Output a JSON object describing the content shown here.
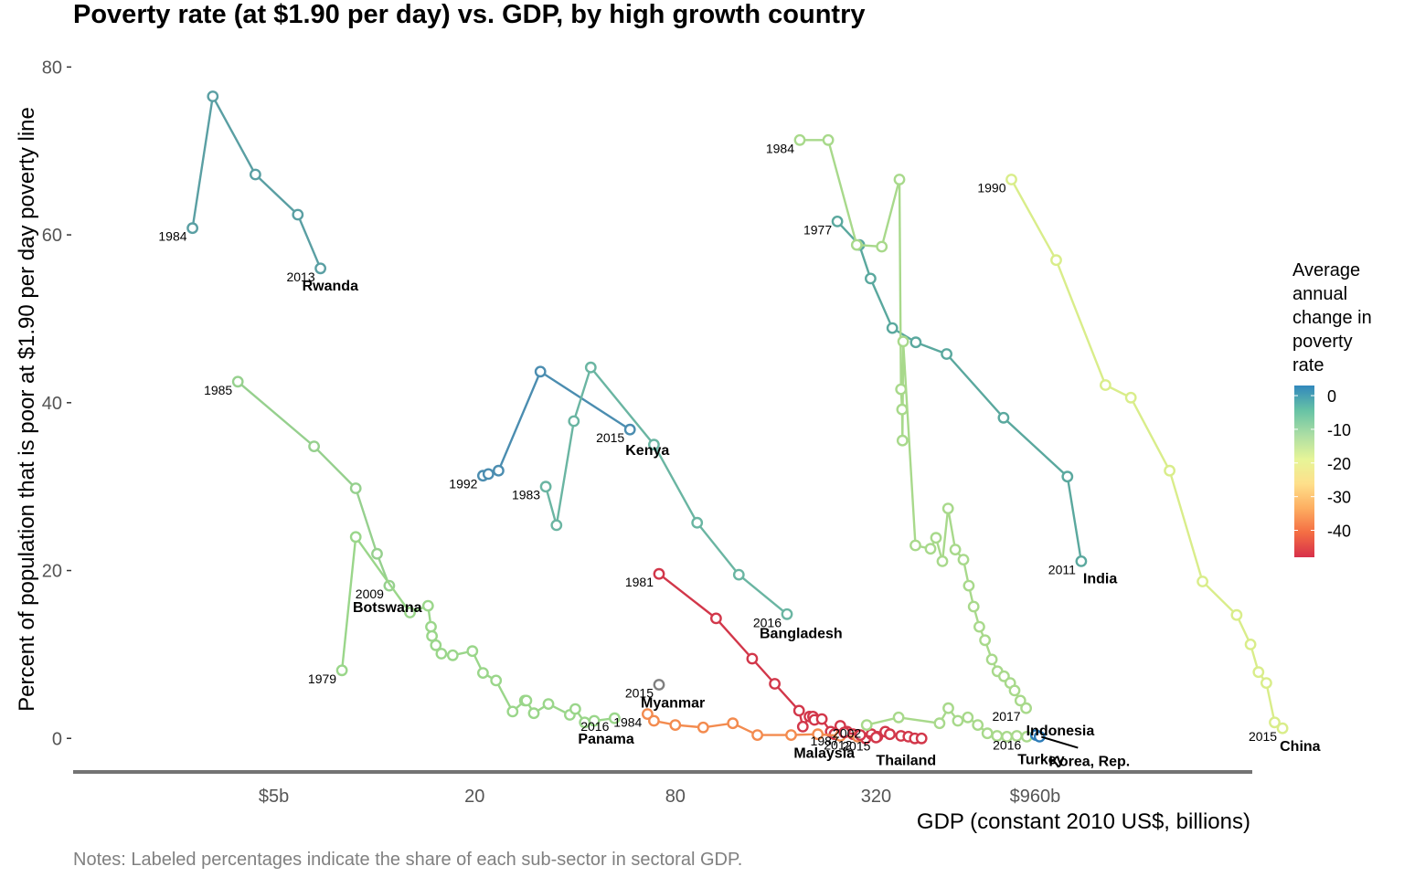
{
  "chart_data": {
    "type": "line",
    "title": "Poverty rate (at $1.90 per day) vs. GDP, by high growth country",
    "xlabel": "GDP (constant 2010 US$, billions)",
    "ylabel": "Percent of population that is poor at $1.90 per day poverty line",
    "notes": "Notes: Labeled percentages indicate the share of each sub-sector in sectoral GDP.",
    "x_scale": "log",
    "xlim": [
      1.25,
      4300
    ],
    "ylim": [
      -4,
      82
    ],
    "x_ticks": [
      {
        "value": 5,
        "label": "$5b"
      },
      {
        "value": 20,
        "label": "20"
      },
      {
        "value": 80,
        "label": "80"
      },
      {
        "value": 320,
        "label": "320"
      },
      {
        "value": 960,
        "label": "$960b"
      }
    ],
    "y_ticks": [
      0,
      20,
      40,
      60,
      80
    ],
    "grid": false,
    "legend": {
      "position": "right",
      "title_lines": [
        "Average",
        "annual",
        "change in",
        "poverty",
        "rate"
      ],
      "ticks": [
        "0",
        "-10",
        "-20",
        "-30",
        "-40"
      ],
      "tick_values": [
        0,
        -10,
        -20,
        -30,
        -40
      ],
      "range": [
        -48,
        3
      ],
      "colors": [
        "#d7304a",
        "#f46d43",
        "#fdae61",
        "#fee08b",
        "#e6f598",
        "#abdda4",
        "#66c2a5",
        "#3288bd"
      ]
    },
    "series": [
      {
        "name": "Rwanda",
        "color": "#5a9fa3",
        "start_year": "1984",
        "end_year": "2013",
        "x": [
          2.85,
          3.28,
          4.4,
          5.9,
          6.9
        ],
        "y": [
          60.8,
          76.5,
          67.2,
          62.4,
          56.0
        ]
      },
      {
        "name": "Botswana",
        "color": "#96d08e",
        "start_year": "1985",
        "end_year": "2009",
        "x": [
          3.9,
          6.6,
          8.8,
          10.2,
          11.1
        ],
        "y": [
          42.5,
          34.8,
          29.8,
          22.0,
          18.2
        ]
      },
      {
        "name": "Panama",
        "color": "#9ad68a",
        "start_year": "1979",
        "end_year": "2016",
        "x": [
          8.0,
          8.8,
          12.8,
          14.5,
          14.8,
          14.9,
          15.3,
          15.9,
          17.2,
          19.7,
          21.2,
          23.2,
          26.0,
          28.3,
          28.6,
          30.1,
          33.3,
          38.6,
          40.1,
          42.8,
          45.7,
          52.6
        ],
        "y": [
          8.1,
          24.0,
          15.0,
          15.8,
          13.3,
          12.2,
          11.1,
          10.1,
          9.9,
          10.4,
          7.8,
          6.9,
          3.2,
          4.5,
          4.5,
          3.0,
          4.1,
          2.8,
          3.5,
          1.9,
          2.1,
          2.4
        ]
      },
      {
        "name": "Kenya",
        "color": "#4b8db0",
        "start_year": "1992",
        "end_year": "2015",
        "x": [
          21.2,
          22.0,
          23.6,
          31.5,
          58.5
        ],
        "y": [
          31.3,
          31.5,
          31.9,
          43.7,
          36.8
        ]
      },
      {
        "name": "Bangladesh",
        "color": "#6ab5a2",
        "start_year": "1983",
        "end_year": "2016",
        "x": [
          32.7,
          35.2,
          39.7,
          44.6,
          69.0,
          93.0,
          124.0,
          173.0
        ],
        "y": [
          30.0,
          25.4,
          37.8,
          44.2,
          35.0,
          25.7,
          19.5,
          14.8
        ]
      },
      {
        "name": "Myanmar",
        "color": "#7f7f7f",
        "start_year": "2015",
        "end_year": "",
        "x": [
          71.5
        ],
        "y": [
          6.4
        ]
      },
      {
        "name": "Bangladesh-1981",
        "color": "#d2374a",
        "start_year": "1981",
        "end_year": "",
        "x": [
          71.5,
          106.0,
          136.0,
          159.0,
          188.0,
          193.0,
          202.0,
          207.0,
          209.0,
          220.0,
          234.0,
          240.0,
          250.0,
          262.0,
          273.0,
          284.0,
          287.0,
          298.0,
          310.0,
          323.0,
          341.0,
          352.0,
          380.0,
          400.0,
          418.0,
          438.0
        ],
        "y": [
          19.6,
          14.3,
          9.5,
          6.5,
          3.3,
          1.4,
          2.6,
          2.6,
          2.2,
          2.3,
          0.8,
          0.5,
          1.5,
          0.8,
          0.5,
          0.4,
          0.3,
          0.0,
          0.5,
          0.2,
          0.8,
          0.5,
          0.3,
          0.2,
          0.0,
          0.0
        ]
      },
      {
        "name": "Malaysia",
        "color": "#f38b4f",
        "start_year": "1984",
        "end_year": "2012",
        "x": [
          66.0,
          69.0,
          80.0,
          97.0,
          119.0,
          141.0,
          178.0,
          214.0,
          250.0,
          282.0
        ],
        "y": [
          2.9,
          2.1,
          1.6,
          1.3,
          1.8,
          0.4,
          0.4,
          0.5,
          0.3,
          0.2
        ]
      },
      {
        "name": "Thailand",
        "color": "#d2374a",
        "start_year": "1987",
        "end_year": "2015",
        "x": [
          257.0,
          287.0,
          320.0
        ],
        "y": [
          0.7,
          0.4,
          0.1
        ]
      },
      {
        "name": "India",
        "color": "#5aa89e",
        "start_year": "1977",
        "end_year": "2011",
        "x": [
          245.0,
          285.0,
          308.0,
          358.0,
          421.0,
          521.0,
          772.0,
          1200.0,
          1320.0
        ],
        "y": [
          61.6,
          58.8,
          54.8,
          48.9,
          47.2,
          45.8,
          38.2,
          31.2,
          21.1
        ]
      },
      {
        "name": "Indonesia",
        "color": "#a8d98b",
        "start_year": "1984",
        "end_year": "2017",
        "x": [
          189.0,
          230.0,
          280.0,
          333.0,
          376.0,
          380.0,
          383.0,
          384.0,
          386.0,
          420.0,
          466.0,
          484.0,
          506.0,
          526.0,
          553.0,
          585.0,
          607.0,
          628.0,
          653.0,
          679.0,
          712.0,
          740.0,
          774.0,
          808.0,
          833.0,
          867.0,
          902.0
        ],
        "y": [
          71.3,
          71.3,
          58.8,
          58.6,
          66.6,
          41.6,
          39.2,
          35.5,
          47.3,
          23.0,
          22.6,
          23.9,
          21.1,
          27.4,
          22.5,
          21.3,
          18.2,
          15.7,
          13.3,
          11.7,
          9.4,
          8.0,
          7.4,
          6.6,
          5.7,
          4.5,
          3.6
        ]
      },
      {
        "name": "Turkey",
        "color": "#a8d98b",
        "start_year": "2002",
        "end_year": "2016",
        "x": [
          300.0,
          374.0,
          496.0,
          527.0,
          563.0,
          603.0,
          646.0,
          690.0,
          738.0,
          790.0,
          846.0,
          906.0
        ],
        "y": [
          1.6,
          2.5,
          1.8,
          3.6,
          2.1,
          2.5,
          1.6,
          0.6,
          0.3,
          0.2,
          0.3,
          0.2
        ]
      },
      {
        "name": "Korea, Rep.",
        "color": "#2b7bb8",
        "start_year": "",
        "end_year": "",
        "x": [
          965.0,
          990.0
        ],
        "y": [
          0.4,
          0.2
        ]
      },
      {
        "name": "China",
        "color": "#d9ed8a",
        "start_year": "1990",
        "end_year": "2015",
        "x": [
          815.0,
          1110.0,
          1560.0,
          1860.0,
          2430.0,
          3050.0,
          3860.0,
          4250.0,
          4490.0,
          4740.0,
          5020.0,
          5300.0
        ],
        "y": [
          66.6,
          57.0,
          42.1,
          40.6,
          31.9,
          18.7,
          14.7,
          11.2,
          7.9,
          6.6,
          1.9,
          1.2
        ]
      }
    ],
    "year_labels": [
      {
        "text": "1984",
        "series": "Rwanda",
        "at": "start"
      },
      {
        "text": "2013",
        "series": "Rwanda",
        "at": "end"
      },
      {
        "text": "1985",
        "series": "Botswana",
        "at": "start"
      },
      {
        "text": "2009",
        "series": "Botswana",
        "at": "end"
      },
      {
        "text": "1979",
        "series": "Panama",
        "at": "start"
      },
      {
        "text": "2016",
        "series": "Panama",
        "at": "end"
      },
      {
        "text": "1992",
        "series": "Kenya",
        "at": "start"
      },
      {
        "text": "2015",
        "series": "Kenya",
        "at": "end"
      },
      {
        "text": "1983",
        "series": "Bangladesh",
        "at": "start"
      },
      {
        "text": "2016",
        "series": "Bangladesh",
        "at": "end"
      },
      {
        "text": "2015",
        "series": "Myanmar",
        "at": "start"
      },
      {
        "text": "1981",
        "series": "Bangladesh-1981",
        "at": "start"
      },
      {
        "text": "1984",
        "series": "Malaysia",
        "at": "start"
      },
      {
        "text": "2012",
        "series": "Malaysia",
        "at": "end"
      },
      {
        "text": "1987",
        "series": "Thailand",
        "at": "start"
      },
      {
        "text": "2015",
        "series": "Thailand",
        "at": "end"
      },
      {
        "text": "1977",
        "series": "India",
        "at": "start"
      },
      {
        "text": "2011",
        "series": "India",
        "at": "end"
      },
      {
        "text": "1984",
        "series": "Indonesia",
        "at": "start"
      },
      {
        "text": "2017",
        "series": "Indonesia",
        "at": "end"
      },
      {
        "text": "2002",
        "series": "Turkey",
        "at": "start"
      },
      {
        "text": "2016",
        "series": "Turkey",
        "at": "end"
      },
      {
        "text": "1990",
        "series": "China",
        "at": "start"
      },
      {
        "text": "2015",
        "series": "China",
        "at": "end"
      }
    ],
    "country_labels": [
      "Rwanda",
      "Botswana",
      "Kenya",
      "Bangladesh",
      "Myanmar",
      "Panama",
      "Malaysia",
      "Thailand",
      "India",
      "Indonesia",
      "Turkey",
      "Korea, Rep.",
      "China"
    ]
  }
}
